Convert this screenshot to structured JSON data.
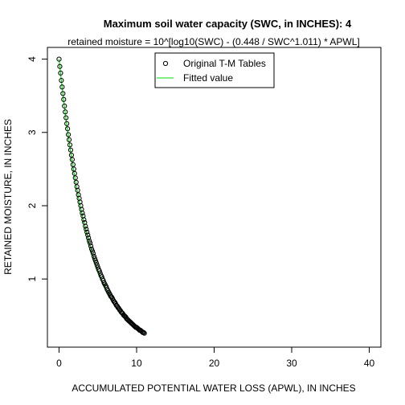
{
  "chart_data": {
    "type": "scatter",
    "title": "Maximum soil water capacity (SWC, in INCHES): 4",
    "subtitle": "retained moisture = 10^[log10(SWC) - (0.448 / SWC^1.011) * APWL]",
    "xlabel": "ACCUMULATED POTENTIAL WATER LOSS (APWL), IN INCHES",
    "ylabel": "RETAINED MOISTURE, IN INCHES",
    "xlim": [
      -1.5,
      41.5
    ],
    "ylim": [
      0.07,
      4.16
    ],
    "x_ticks": [
      0,
      10,
      20,
      30,
      40
    ],
    "y_ticks": [
      1,
      2,
      3,
      4
    ],
    "grid": false,
    "legend": {
      "position": "top-center",
      "entries": [
        {
          "label": "Original T-M Tables",
          "marker": "open-circle",
          "color": "#000000"
        },
        {
          "label": "Fitted value",
          "marker": "line",
          "color": "#00dd00"
        }
      ]
    },
    "formula": {
      "swc": 4,
      "coef": 0.448,
      "exp": 1.011
    },
    "series": [
      {
        "name": "Original T-M Tables",
        "style": "points",
        "color": "#000000",
        "x": [
          0,
          0.1,
          0.2,
          0.3,
          0.4,
          0.5,
          0.6,
          0.7,
          0.8,
          0.9,
          1.0,
          1.1,
          1.2,
          1.3,
          1.4,
          1.5,
          1.6,
          1.7,
          1.8,
          1.9,
          2.0,
          2.1,
          2.2,
          2.3,
          2.4,
          2.5,
          2.6,
          2.7,
          2.8,
          2.9,
          3.0,
          3.1,
          3.2,
          3.3,
          3.4,
          3.5,
          3.6,
          3.7,
          3.8,
          3.9,
          4.0,
          4.1,
          4.2,
          4.3,
          4.4,
          4.5,
          4.6,
          4.7,
          4.8,
          4.9,
          5.0,
          5.1,
          5.2,
          5.3,
          5.4,
          5.5,
          5.6,
          5.7,
          5.8,
          5.9,
          6.0,
          6.1,
          6.2,
          6.3,
          6.4,
          6.5,
          6.6,
          6.7,
          6.8,
          6.9,
          7.0,
          7.1,
          7.2,
          7.3,
          7.4,
          7.5,
          7.6,
          7.7,
          7.8,
          7.9,
          8.0,
          8.1,
          8.2,
          8.3,
          8.4,
          8.5,
          8.6,
          8.7,
          8.8,
          8.9,
          9.0,
          9.1,
          9.2,
          9.3,
          9.4,
          9.5,
          9.6,
          9.7,
          9.8,
          9.9,
          10.0,
          10.1,
          10.2,
          10.3,
          10.4,
          10.5,
          10.6,
          10.7,
          10.8,
          10.9,
          11.0
        ],
        "y": [
          4.0,
          3.9,
          3.81,
          3.71,
          3.62,
          3.53,
          3.45,
          3.36,
          3.28,
          3.2,
          3.12,
          3.05,
          2.97,
          2.9,
          2.83,
          2.76,
          2.69,
          2.63,
          2.56,
          2.5,
          2.44,
          2.38,
          2.32,
          2.26,
          2.21,
          2.15,
          2.1,
          2.05,
          2.0,
          1.95,
          1.9,
          1.86,
          1.81,
          1.77,
          1.72,
          1.68,
          1.64,
          1.6,
          1.56,
          1.52,
          1.49,
          1.45,
          1.41,
          1.38,
          1.35,
          1.31,
          1.28,
          1.25,
          1.22,
          1.19,
          1.16,
          1.13,
          1.11,
          1.08,
          1.05,
          1.03,
          1.0,
          0.98,
          0.95,
          0.93,
          0.91,
          0.89,
          0.86,
          0.84,
          0.82,
          0.8,
          0.78,
          0.76,
          0.75,
          0.73,
          0.71,
          0.69,
          0.68,
          0.66,
          0.64,
          0.63,
          0.61,
          0.6,
          0.58,
          0.57,
          0.55,
          0.54,
          0.53,
          0.51,
          0.5,
          0.49,
          0.48,
          0.46,
          0.45,
          0.44,
          0.43,
          0.42,
          0.41,
          0.4,
          0.39,
          0.38,
          0.37,
          0.36,
          0.35,
          0.34,
          0.34,
          0.33,
          0.32,
          0.31,
          0.3,
          0.3,
          0.29,
          0.28,
          0.27,
          0.27,
          0.26
        ]
      },
      {
        "name": "Fitted value",
        "style": "line",
        "color": "#00dd00",
        "x_range": [
          0,
          11
        ]
      }
    ]
  }
}
